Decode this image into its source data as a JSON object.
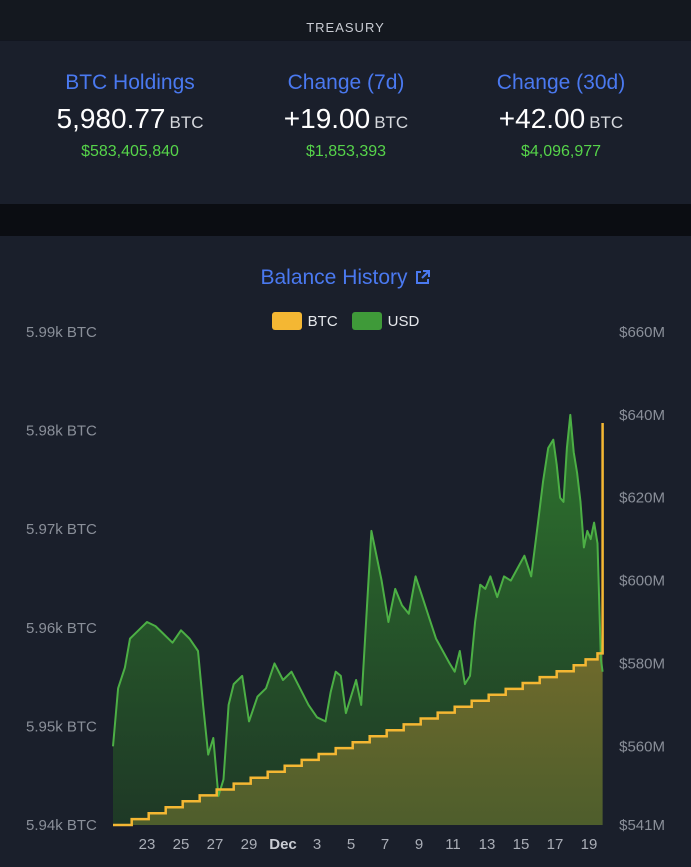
{
  "header": {
    "title": "TREASURY"
  },
  "stats": [
    {
      "label": "BTC Holdings",
      "value": "5,980.77",
      "unit": "BTC",
      "usd": "$583,405,840"
    },
    {
      "label": "Change (7d)",
      "value": "+19.00",
      "unit": "BTC",
      "usd": "$1,853,393"
    },
    {
      "label": "Change (30d)",
      "value": "+42.00",
      "unit": "BTC",
      "usd": "$4,096,977"
    }
  ],
  "chart_title": "Balance History",
  "icons": {
    "title_link": "external-link-icon"
  },
  "colors": {
    "btc": "#f4b733",
    "usd": "#3f9a39",
    "accent": "#4a79f0",
    "positive": "#56d44a"
  },
  "chart_data": {
    "type": "area",
    "title": "Balance History",
    "legend": [
      "BTC",
      "USD"
    ],
    "legend_position": "top-center",
    "grid": false,
    "y_left": {
      "unit": "BTC",
      "ylim": [
        5940,
        5990
      ],
      "ticks": [
        "5.99k BTC",
        "5.98k BTC",
        "5.97k BTC",
        "5.96k BTC",
        "5.95k BTC",
        "5.94k BTC"
      ]
    },
    "y_right": {
      "unit": "USD",
      "ylim": [
        541,
        660
      ],
      "ticks": [
        "$660M",
        "$640M",
        "$620M",
        "$600M",
        "$580M",
        "$560M",
        "$541M"
      ]
    },
    "x_ticks": [
      "23",
      "25",
      "27",
      "29",
      "Dec",
      "3",
      "5",
      "7",
      "9",
      "11",
      "13",
      "15",
      "17",
      "19"
    ],
    "x_range": [
      21,
      50
    ],
    "series": [
      {
        "name": "BTC",
        "axis": "left",
        "x": [
          21,
          22.1,
          23.1,
          24.1,
          25.1,
          26.1,
          27.1,
          28.1,
          29.1,
          30.1,
          31.1,
          32.1,
          33.1,
          34.1,
          35.1,
          36.1,
          37.1,
          38.1,
          39.1,
          40.1,
          41.1,
          42.1,
          43.1,
          44.1,
          45.1,
          46.1,
          47.1,
          48.1,
          48.8,
          49.5,
          49.8
        ],
        "values": [
          5940,
          5940.6,
          5941.2,
          5941.8,
          5942.4,
          5943,
          5943.6,
          5944.2,
          5944.8,
          5945.4,
          5946,
          5946.6,
          5947.2,
          5947.8,
          5948.4,
          5949,
          5949.6,
          5950.2,
          5950.8,
          5951.4,
          5952,
          5952.6,
          5953.2,
          5953.8,
          5954.4,
          5955,
          5955.6,
          5956.2,
          5956.8,
          5957.4,
          5980.77
        ]
      },
      {
        "name": "USD",
        "axis": "right",
        "x": [
          21,
          21.3,
          21.7,
          22,
          22.5,
          23,
          23.5,
          24,
          24.5,
          25,
          25.5,
          26,
          26.3,
          26.6,
          26.9,
          27.2,
          27.5,
          27.8,
          28.1,
          28.6,
          29,
          29.5,
          30,
          30.5,
          31,
          31.5,
          32,
          32.5,
          33,
          33.5,
          33.8,
          34.1,
          34.4,
          34.7,
          35,
          35.3,
          35.6,
          35.9,
          36.2,
          36.5,
          36.8,
          37.2,
          37.6,
          38,
          38.4,
          38.8,
          39.2,
          39.6,
          40,
          40.4,
          40.8,
          41.1,
          41.4,
          41.7,
          42,
          42.3,
          42.6,
          42.9,
          43.2,
          43.6,
          44,
          44.4,
          44.8,
          45.2,
          45.6,
          46,
          46.3,
          46.6,
          46.9,
          47.1,
          47.3,
          47.5,
          47.7,
          47.9,
          48.1,
          48.3,
          48.5,
          48.7,
          48.9,
          49.1,
          49.3,
          49.5,
          49.7,
          49.8
        ],
        "values": [
          560,
          574,
          579,
          586,
          588,
          590,
          589,
          587,
          585,
          588,
          586,
          583,
          570,
          558,
          562,
          548,
          552,
          570,
          575,
          577,
          566,
          572,
          574,
          580,
          576,
          578,
          574,
          570,
          567,
          566,
          573,
          578,
          577,
          568,
          572,
          576,
          570,
          591,
          612,
          606,
          600,
          590,
          598,
          594,
          592,
          601,
          596,
          591,
          586,
          583,
          580,
          578,
          583,
          575,
          577,
          590,
          599,
          598,
          601,
          596,
          601,
          600,
          603,
          606,
          601,
          614,
          624,
          632,
          634,
          628,
          620,
          619,
          632,
          640,
          631,
          626,
          619,
          608,
          612,
          610,
          614,
          609,
          581,
          578
        ]
      }
    ]
  }
}
